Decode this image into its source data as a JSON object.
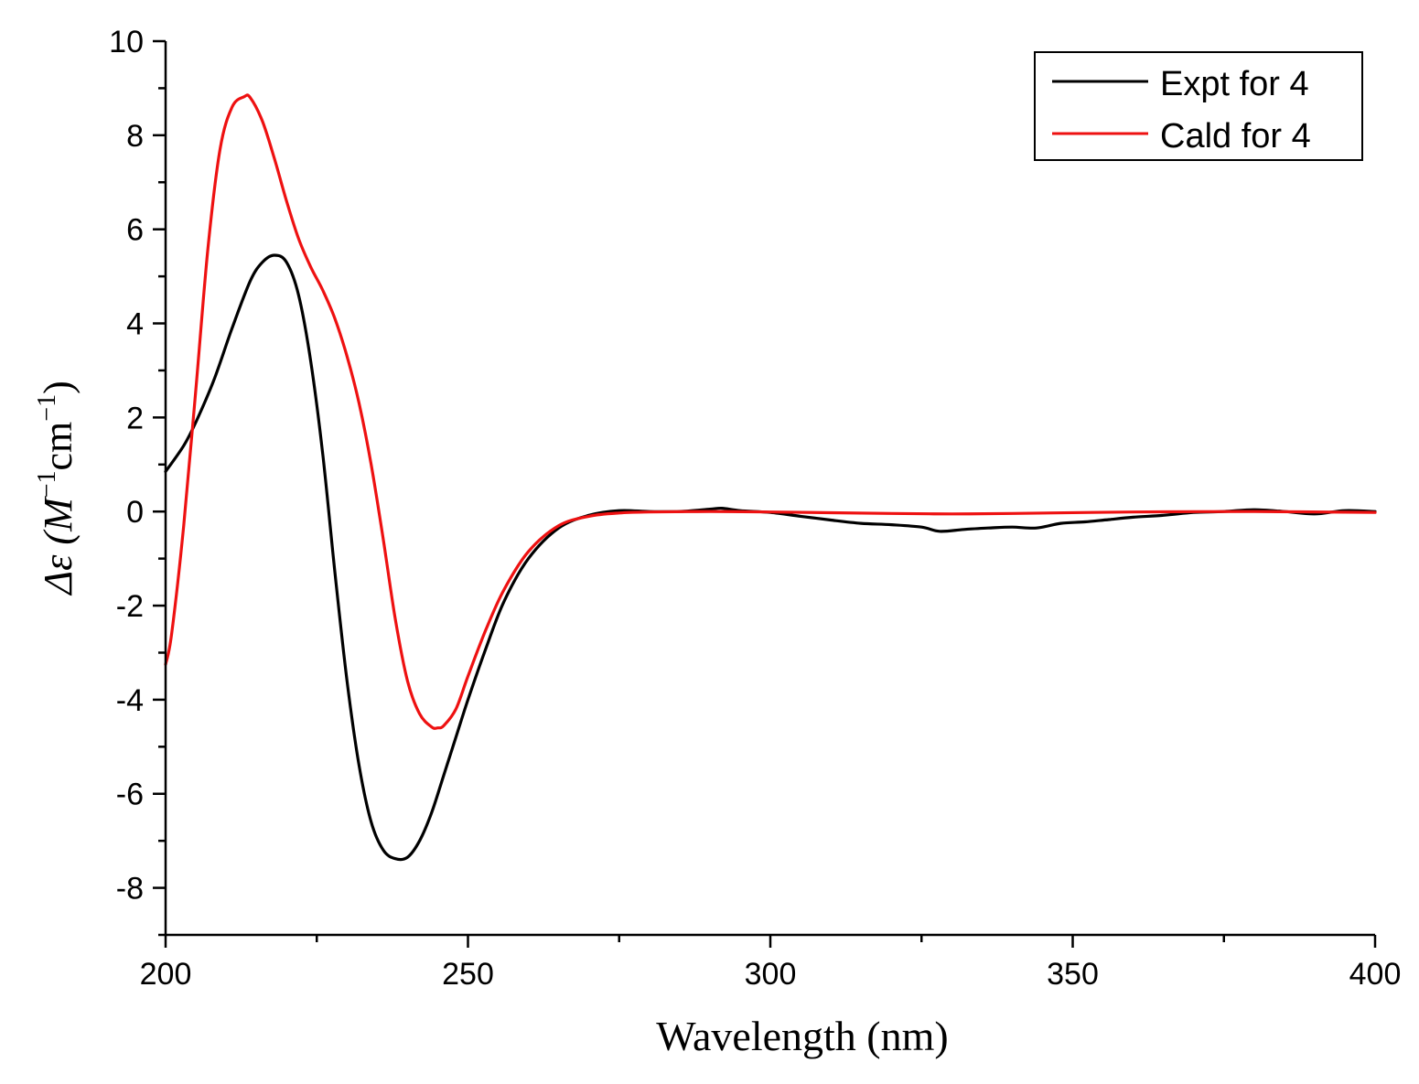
{
  "chart_data": {
    "type": "line",
    "xlabel": "Wavelength (nm)",
    "ylabel": {
      "prefix": "Δε (M",
      "sup1": "−1",
      "mid": "cm",
      "sup2": "−1",
      "suffix": ")"
    },
    "xlim": [
      200,
      400
    ],
    "ylim": [
      -9,
      10
    ],
    "xticks": [
      200,
      250,
      300,
      350,
      400
    ],
    "xtick_labels": [
      "200",
      "250",
      "300",
      "350",
      "400"
    ],
    "x_minor_step": 25,
    "yticks": [
      -8,
      -6,
      -4,
      -2,
      0,
      2,
      4,
      6,
      8,
      10
    ],
    "ytick_labels": [
      "-8",
      "-6",
      "-4",
      "-2",
      "0",
      "2",
      "4",
      "6",
      "8",
      "10"
    ],
    "y_minor_step": 1,
    "legend_position": "top-right",
    "series": [
      {
        "name": "Expt for 4",
        "color": "#000000",
        "x": [
          200,
          203,
          205,
          208,
          211,
          214,
          216,
          218,
          220,
          222,
          224,
          226,
          228,
          230,
          232,
          234,
          236,
          238,
          240,
          242,
          244,
          246,
          248,
          250,
          253,
          256,
          260,
          265,
          270,
          275,
          280,
          285,
          290,
          292,
          295,
          300,
          305,
          310,
          315,
          320,
          325,
          328,
          332,
          336,
          340,
          344,
          348,
          352,
          356,
          360,
          365,
          370,
          375,
          380,
          385,
          390,
          395,
          400
        ],
        "values": [
          0.85,
          1.4,
          1.9,
          2.8,
          3.9,
          4.9,
          5.3,
          5.45,
          5.3,
          4.6,
          3.2,
          1.2,
          -1.3,
          -3.6,
          -5.4,
          -6.6,
          -7.2,
          -7.38,
          -7.35,
          -7.0,
          -6.4,
          -5.6,
          -4.8,
          -4.0,
          -2.9,
          -1.9,
          -1.0,
          -0.35,
          -0.08,
          0.02,
          0.0,
          0.0,
          0.05,
          0.07,
          0.02,
          -0.02,
          -0.1,
          -0.18,
          -0.25,
          -0.28,
          -0.33,
          -0.42,
          -0.38,
          -0.35,
          -0.33,
          -0.35,
          -0.25,
          -0.22,
          -0.17,
          -0.12,
          -0.08,
          -0.02,
          0.0,
          0.04,
          0.0,
          -0.05,
          0.02,
          0.0
        ]
      },
      {
        "name": "Cald for 4",
        "color": "#ee1111",
        "x": [
          200,
          201,
          203,
          205,
          207,
          209,
          211,
          213,
          214,
          216,
          218,
          220,
          222,
          224,
          226,
          228,
          230,
          232,
          234,
          236,
          238,
          240,
          242,
          244,
          245,
          246,
          248,
          250,
          253,
          256,
          260,
          265,
          270,
          275,
          280,
          290,
          300,
          320,
          330,
          340,
          360,
          380,
          400
        ],
        "values": [
          -3.25,
          -2.6,
          -0.3,
          2.6,
          5.6,
          7.7,
          8.6,
          8.82,
          8.8,
          8.3,
          7.5,
          6.6,
          5.8,
          5.2,
          4.7,
          4.1,
          3.3,
          2.3,
          1.0,
          -0.6,
          -2.3,
          -3.6,
          -4.3,
          -4.58,
          -4.6,
          -4.55,
          -4.2,
          -3.5,
          -2.5,
          -1.65,
          -0.85,
          -0.3,
          -0.1,
          -0.03,
          -0.01,
          0.0,
          -0.01,
          -0.04,
          -0.05,
          -0.04,
          -0.01,
          0.0,
          -0.02
        ]
      }
    ]
  }
}
